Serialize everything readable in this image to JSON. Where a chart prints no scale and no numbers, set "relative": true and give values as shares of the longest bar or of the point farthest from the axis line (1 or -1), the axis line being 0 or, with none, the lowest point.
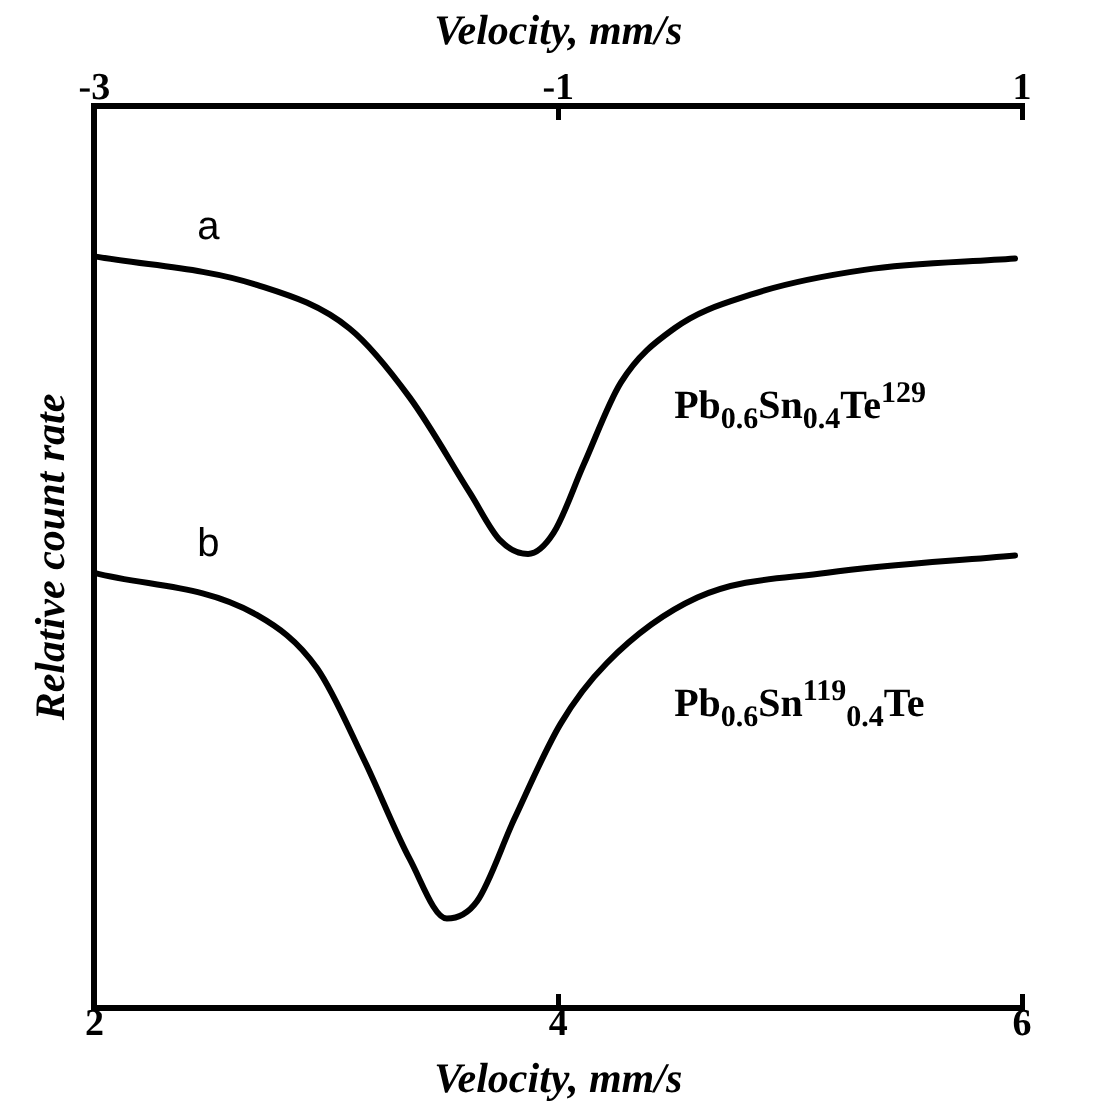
{
  "chart_data": {
    "type": "line",
    "relative": true,
    "xlabel": "Velocity, mm/s",
    "x2label": "Velocity, mm/s",
    "ylabel": "Relative count rate",
    "xlim": [
      2,
      6
    ],
    "xticks": [
      2,
      4,
      6
    ],
    "x2lim": [
      -3,
      1
    ],
    "x2ticks": [
      -3,
      -1,
      1
    ],
    "grid": false,
    "legend": false,
    "marker": "none",
    "line_style": "solid",
    "series": [
      {
        "name": "a",
        "color": "#000000",
        "x": [
          2.0,
          2.7,
          3.1,
          3.36,
          3.62,
          3.75,
          3.87,
          3.98,
          4.11,
          4.27,
          4.5,
          4.83,
          5.32,
          5.97
        ],
        "values": [
          1.0,
          0.962,
          0.904,
          0.812,
          0.685,
          0.622,
          0.604,
          0.632,
          0.723,
          0.832,
          0.904,
          0.949,
          0.982,
          0.997
        ]
      },
      {
        "name": "b",
        "color": "#000000",
        "x": [
          2.0,
          2.7,
          2.96,
          3.16,
          3.36,
          3.52,
          3.65,
          3.81,
          4.01,
          4.21,
          4.6,
          5.16,
          5.97
        ],
        "values": [
          0.579,
          0.523,
          0.452,
          0.332,
          0.198,
          0.119,
          0.142,
          0.251,
          0.378,
          0.459,
          0.546,
          0.579,
          0.602
        ]
      }
    ],
    "annotations": [
      "Pb$_{0.6}$Sn$_{0.4}$Te$^{129}$",
      "Pb$_{0.6}$Sn$^{119}$$_{0.4}$Te"
    ]
  }
}
